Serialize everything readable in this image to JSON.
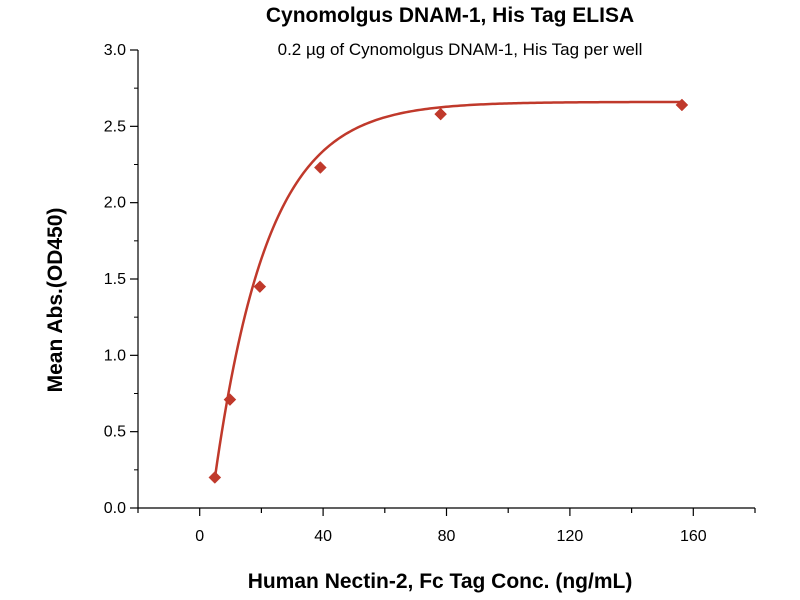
{
  "chart_data": {
    "type": "scatter",
    "title": "Cynomolgus DNAM-1, His Tag ELISA",
    "subtitle": "0.2 µg of Cynomolgus DNAM-1, His Tag per well",
    "xlabel": "Human Nectin-2, Fc Tag Conc. (ng/mL)",
    "ylabel": "Mean Abs.(OD450)",
    "xlim": [
      -20,
      180
    ],
    "ylim": [
      0,
      3.0
    ],
    "x_ticks": [
      "0",
      "40",
      "80",
      "120",
      "160"
    ],
    "y_ticks": [
      "0.0",
      "0.5",
      "1.0",
      "1.5",
      "2.0",
      "2.5",
      "3.0"
    ],
    "grid": false,
    "marker": "diamond",
    "color": "#c0392b",
    "series": [
      {
        "x": [
          4.9,
          9.8,
          19.5,
          39.1,
          78.1,
          156.3
        ],
        "y": [
          0.2,
          0.71,
          1.45,
          2.23,
          2.58,
          2.64
        ],
        "fit_curve": true
      }
    ]
  }
}
